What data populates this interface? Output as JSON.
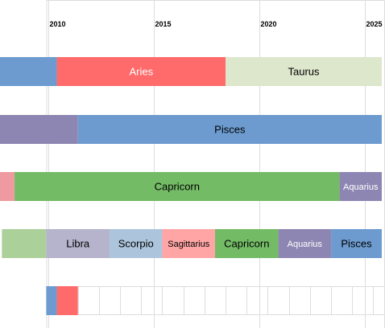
{
  "chart_data": {
    "type": "bar",
    "subtype": "timeline",
    "orientation": "horizontal",
    "x_axis": {
      "min": 2010,
      "max": 2025.8,
      "ticks": [
        {
          "value": 2010,
          "label": "2010"
        },
        {
          "value": 2015,
          "label": "2015"
        },
        {
          "value": 2020,
          "label": "2020"
        },
        {
          "value": 2025,
          "label": "2025"
        }
      ],
      "position": "top"
    },
    "grid": "vertical",
    "rows": [
      {
        "name": "",
        "segments": [
          {
            "label": "",
            "start": 2007.7,
            "end": 2010.4,
            "color": "#6d9bd0"
          },
          {
            "label": "Aries",
            "start": 2010.4,
            "end": 2018.4,
            "color": "#ff6b6b",
            "label_color": "#ffffff"
          },
          {
            "label": "Taurus",
            "start": 2018.4,
            "end": 2025.8,
            "color": "#dde7cc",
            "label_color": "#000000"
          }
        ]
      },
      {
        "name": "",
        "segments": [
          {
            "label": "",
            "start": 2007.7,
            "end": 2011.4,
            "color": "#8e86b2"
          },
          {
            "label": "Pisces",
            "start": 2011.4,
            "end": 2025.8,
            "color": "#6d9bd0",
            "label_color": "#000000"
          }
        ]
      },
      {
        "name": "",
        "segments": [
          {
            "label": "",
            "start": 2007.7,
            "end": 2008.4,
            "color": "#ee9aa0"
          },
          {
            "label": "Capricorn",
            "start": 2008.4,
            "end": 2023.8,
            "color": "#74bb66",
            "label_color": "#000000"
          },
          {
            "label": "Aquarius",
            "start": 2023.8,
            "end": 2025.8,
            "color": "#8e86b2",
            "label_color": "#ffffff"
          }
        ]
      },
      {
        "name": "",
        "segments": [
          {
            "label": "",
            "start": 2007.8,
            "end": 2009.9,
            "color": "#acd09a"
          },
          {
            "label": "Libra",
            "start": 2009.9,
            "end": 2012.9,
            "color": "#b6b3cc",
            "label_color": "#000000"
          },
          {
            "label": "Scorpio",
            "start": 2012.9,
            "end": 2015.4,
            "color": "#adc5dc",
            "label_color": "#000000"
          },
          {
            "label": "Sagittarius",
            "start": 2015.4,
            "end": 2017.9,
            "color": "#ffa5a5",
            "label_color": "#000000"
          },
          {
            "label": "Capricorn",
            "start": 2017.9,
            "end": 2020.9,
            "color": "#74bb66",
            "label_color": "#000000"
          },
          {
            "label": "Aquarius",
            "start": 2020.9,
            "end": 2023.4,
            "color": "#8e86b2",
            "label_color": "#ffffff"
          },
          {
            "label": "Pisces",
            "start": 2023.4,
            "end": 2025.8,
            "color": "#6d9bd0",
            "label_color": "#000000"
          }
        ]
      },
      {
        "name": "",
        "segments": [
          {
            "label": "",
            "start": 2009.9,
            "end": 2010.4,
            "color": "#6d9bd0"
          },
          {
            "label": "",
            "start": 2010.4,
            "end": 2011.4,
            "color": "#ff6b6b"
          }
        ]
      }
    ]
  }
}
